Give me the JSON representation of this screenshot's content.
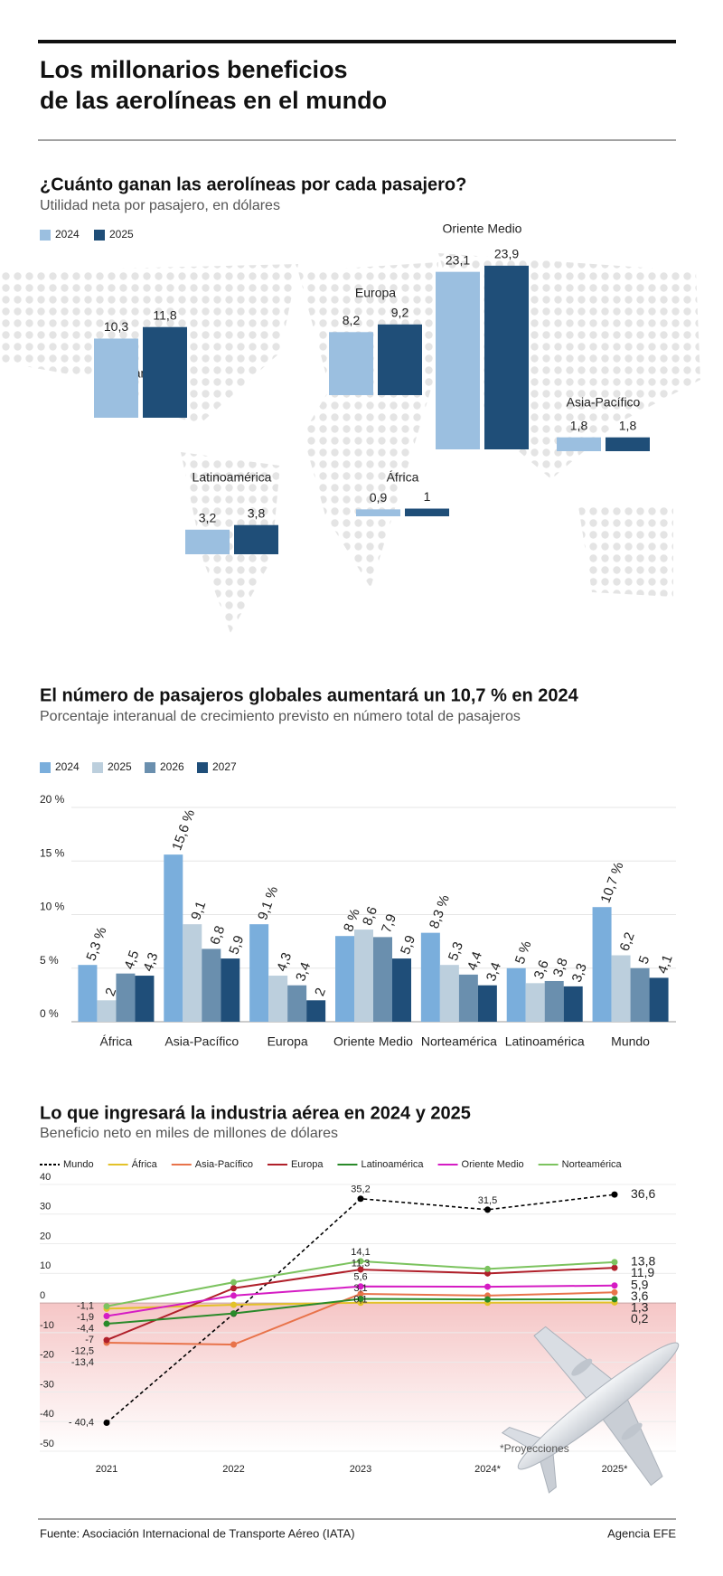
{
  "title": [
    "Los millonarios beneficios",
    "de las aerolíneas en el mundo"
  ],
  "source": "Fuente: Asociación Internacional de Transporte Aéreo (IATA)",
  "credit": "Agencia EFE",
  "chart_data": [
    {
      "type": "bar",
      "title": "¿Cuánto ganan las aerolíneas por cada pasajero?",
      "subtitle": "Utilidad neta por pasajero, en dólares",
      "categories": [
        "Norteamérica",
        "Europa",
        "Oriente Medio",
        "Asia-Pacífico",
        "Latinoamérica",
        "África"
      ],
      "series": [
        {
          "name": "2024",
          "color": "#9bbfe0",
          "values": [
            10.3,
            8.2,
            23.1,
            1.8,
            3.2,
            0.9
          ],
          "value_labels": [
            "10,3",
            "8,2",
            "23,1",
            "1,8",
            "3,2",
            "0,9"
          ]
        },
        {
          "name": "2025",
          "color": "#1f4e78",
          "values": [
            11.8,
            9.2,
            23.9,
            1.8,
            3.8,
            1
          ],
          "value_labels": [
            "11,8",
            "9,2",
            "23,9",
            "1,8",
            "3,8",
            "1"
          ]
        }
      ],
      "legend": "top-left"
    },
    {
      "type": "bar",
      "title": "El número de pasajeros globales aumentará un 10,7 % en 2024",
      "subtitle": "Porcentaje interanual de crecimiento previsto en número total de pasajeros",
      "categories": [
        "África",
        "Asia-Pacífico",
        "Europa",
        "Oriente Medio",
        "Norteamérica",
        "Latinoamérica",
        "Mundo"
      ],
      "series": [
        {
          "name": "2024",
          "color": "#7aaedc",
          "values": [
            5.3,
            15.6,
            9.1,
            8,
            8.3,
            5,
            10.7
          ],
          "value_labels": [
            "5,3 %",
            "15,6 %",
            "9,1 %",
            "8 %",
            "8,3 %",
            "5 %",
            "10,7 %"
          ]
        },
        {
          "name": "2025",
          "color": "#bccfdd",
          "values": [
            2,
            9.1,
            4.3,
            8.6,
            5.3,
            3.6,
            6.2
          ],
          "value_labels": [
            "2",
            "9,1",
            "4,3",
            "8,6",
            "5,3",
            "3,6",
            "6,2"
          ]
        },
        {
          "name": "2026",
          "color": "#6a8fae",
          "values": [
            4.5,
            6.8,
            3.4,
            7.9,
            4.4,
            3.8,
            5
          ],
          "value_labels": [
            "4,5",
            "6,8",
            "3,4",
            "7,9",
            "4,4",
            "3,8",
            "5"
          ]
        },
        {
          "name": "2027",
          "color": "#1f4e79",
          "values": [
            4.3,
            5.9,
            2,
            5.9,
            3.4,
            3.3,
            4.1
          ],
          "value_labels": [
            "4,3",
            "5,9",
            "2",
            "5,9",
            "3,4",
            "3,3",
            "4,1"
          ]
        }
      ],
      "ylim": [
        0,
        20
      ],
      "yticks": [
        {
          "value": 0,
          "label": "0 %"
        },
        {
          "value": 5,
          "label": "5 %"
        },
        {
          "value": 10,
          "label": "10 %"
        },
        {
          "value": 15,
          "label": "15 %"
        },
        {
          "value": 20,
          "label": "20 %"
        }
      ],
      "grid": true,
      "legend": "top-left"
    },
    {
      "type": "line",
      "title": "Lo que ingresará la industria aérea en 2024 y 2025",
      "subtitle": "Beneficio neto en miles de millones de dólares",
      "note": "*Proyecciones",
      "categories": [
        "2021",
        "2022",
        "2023",
        "2024*",
        "2025*"
      ],
      "series": [
        {
          "name": "Mundo",
          "color": "#000000",
          "dash": true,
          "values": [
            -40.4,
            -3.6,
            35.2,
            31.5,
            36.6
          ],
          "value_labels": [
            "- 40,4",
            null,
            "35,2",
            "31,5",
            "36,6"
          ]
        },
        {
          "name": "África",
          "color": "#e3c229",
          "values": [
            -1.9,
            -0.6,
            0.1,
            0.1,
            0.2
          ],
          "value_labels": [
            "-1,9",
            null,
            "0,1",
            null,
            "0,2"
          ]
        },
        {
          "name": "Asia-Pacífico",
          "color": "#e8734a",
          "values": [
            -13.4,
            -14,
            3.1,
            2.5,
            3.6
          ],
          "value_labels": [
            "-13,4",
            null,
            "3,1",
            null,
            "3,6"
          ]
        },
        {
          "name": "Europa",
          "color": "#b0202a",
          "values": [
            -12.5,
            5,
            11.3,
            10,
            11.9
          ],
          "value_labels": [
            "-12,5",
            null,
            "11,3",
            null,
            "11,9"
          ]
        },
        {
          "name": "Latinoamérica",
          "color": "#2a8a2a",
          "values": [
            -7,
            -3.5,
            1.4,
            1.2,
            1.3
          ],
          "value_labels": [
            "-7",
            null,
            null,
            null,
            "1,3"
          ]
        },
        {
          "name": "Oriente Medio",
          "color": "#d51cc4",
          "values": [
            -4.4,
            2.5,
            5.6,
            5.5,
            5.9
          ],
          "value_labels": [
            "-4,4",
            null,
            "5,6",
            null,
            "5,9"
          ]
        },
        {
          "name": "Norteamérica",
          "color": "#7cc35f",
          "values": [
            -1.1,
            7,
            14.1,
            11.5,
            13.8
          ],
          "value_labels": [
            "-1,1",
            null,
            "14,1",
            null,
            "13,8"
          ]
        }
      ],
      "ylim": [
        -50,
        40
      ],
      "yticks": [
        -50,
        -40,
        -30,
        -20,
        -10,
        0,
        10,
        20,
        30,
        40
      ],
      "grid": true,
      "legend": "top-left"
    }
  ]
}
